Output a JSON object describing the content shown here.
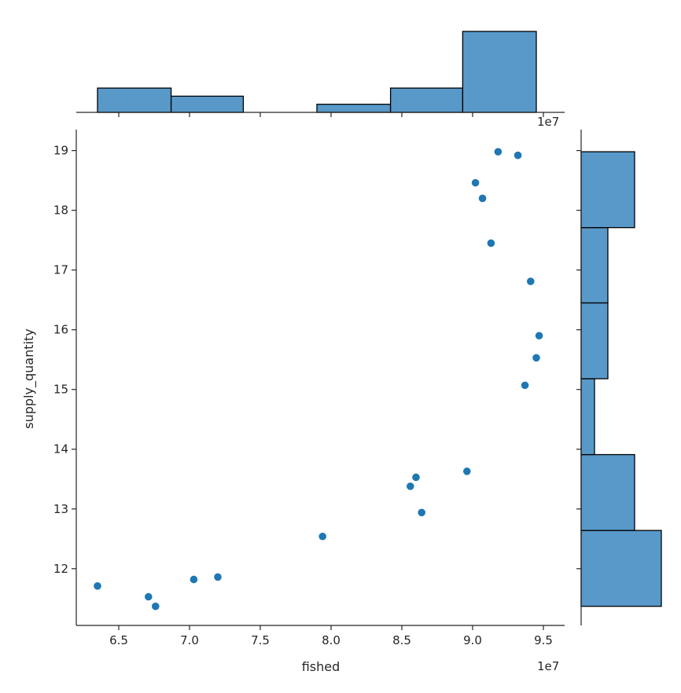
{
  "chart_data": {
    "type": "scatter",
    "variant": "jointplot",
    "xlabel": "fished",
    "ylabel": "supply_quantity",
    "x_offset_label": "1e7",
    "x_scale": 10000000,
    "xlim": [
      6.2,
      9.65
    ],
    "ylim": [
      11.05,
      19.35
    ],
    "x_ticks": [
      6.5,
      7.0,
      7.5,
      8.0,
      8.5,
      9.0,
      9.5
    ],
    "x_tick_labels": [
      "6.5",
      "7.0",
      "7.5",
      "8.0",
      "8.5",
      "9.0",
      "9.5"
    ],
    "y_ticks": [
      12,
      13,
      14,
      15,
      16,
      17,
      18,
      19
    ],
    "y_tick_labels": [
      "12",
      "13",
      "14",
      "15",
      "16",
      "17",
      "18",
      "19"
    ],
    "points": [
      {
        "x": 6.35,
        "y": 11.71
      },
      {
        "x": 6.71,
        "y": 11.53
      },
      {
        "x": 6.76,
        "y": 11.37
      },
      {
        "x": 7.03,
        "y": 11.82
      },
      {
        "x": 7.2,
        "y": 11.86
      },
      {
        "x": 7.94,
        "y": 12.54
      },
      {
        "x": 8.56,
        "y": 13.38
      },
      {
        "x": 8.6,
        "y": 13.53
      },
      {
        "x": 8.64,
        "y": 12.94
      },
      {
        "x": 8.96,
        "y": 13.63
      },
      {
        "x": 9.02,
        "y": 18.46
      },
      {
        "x": 9.07,
        "y": 18.2
      },
      {
        "x": 9.13,
        "y": 17.45
      },
      {
        "x": 9.18,
        "y": 18.98
      },
      {
        "x": 9.32,
        "y": 18.92
      },
      {
        "x": 9.37,
        "y": 15.07
      },
      {
        "x": 9.41,
        "y": 16.81
      },
      {
        "x": 9.45,
        "y": 15.53
      },
      {
        "x": 9.47,
        "y": 15.9
      }
    ],
    "marginal_x": {
      "bin_edges": [
        6.35,
        6.87,
        7.38,
        7.9,
        8.42,
        8.93,
        9.45
      ],
      "counts": [
        3,
        2,
        0,
        1,
        3,
        10
      ]
    },
    "marginal_y": {
      "bin_edges": [
        11.37,
        12.64,
        13.91,
        15.18,
        16.45,
        17.71,
        18.98
      ],
      "counts": [
        6,
        4,
        1,
        2,
        2,
        4
      ]
    },
    "colors": {
      "point": "#1f77b4",
      "bar_fill": "#5899c9",
      "bar_edge": "#000000",
      "axis": "#262626"
    }
  }
}
